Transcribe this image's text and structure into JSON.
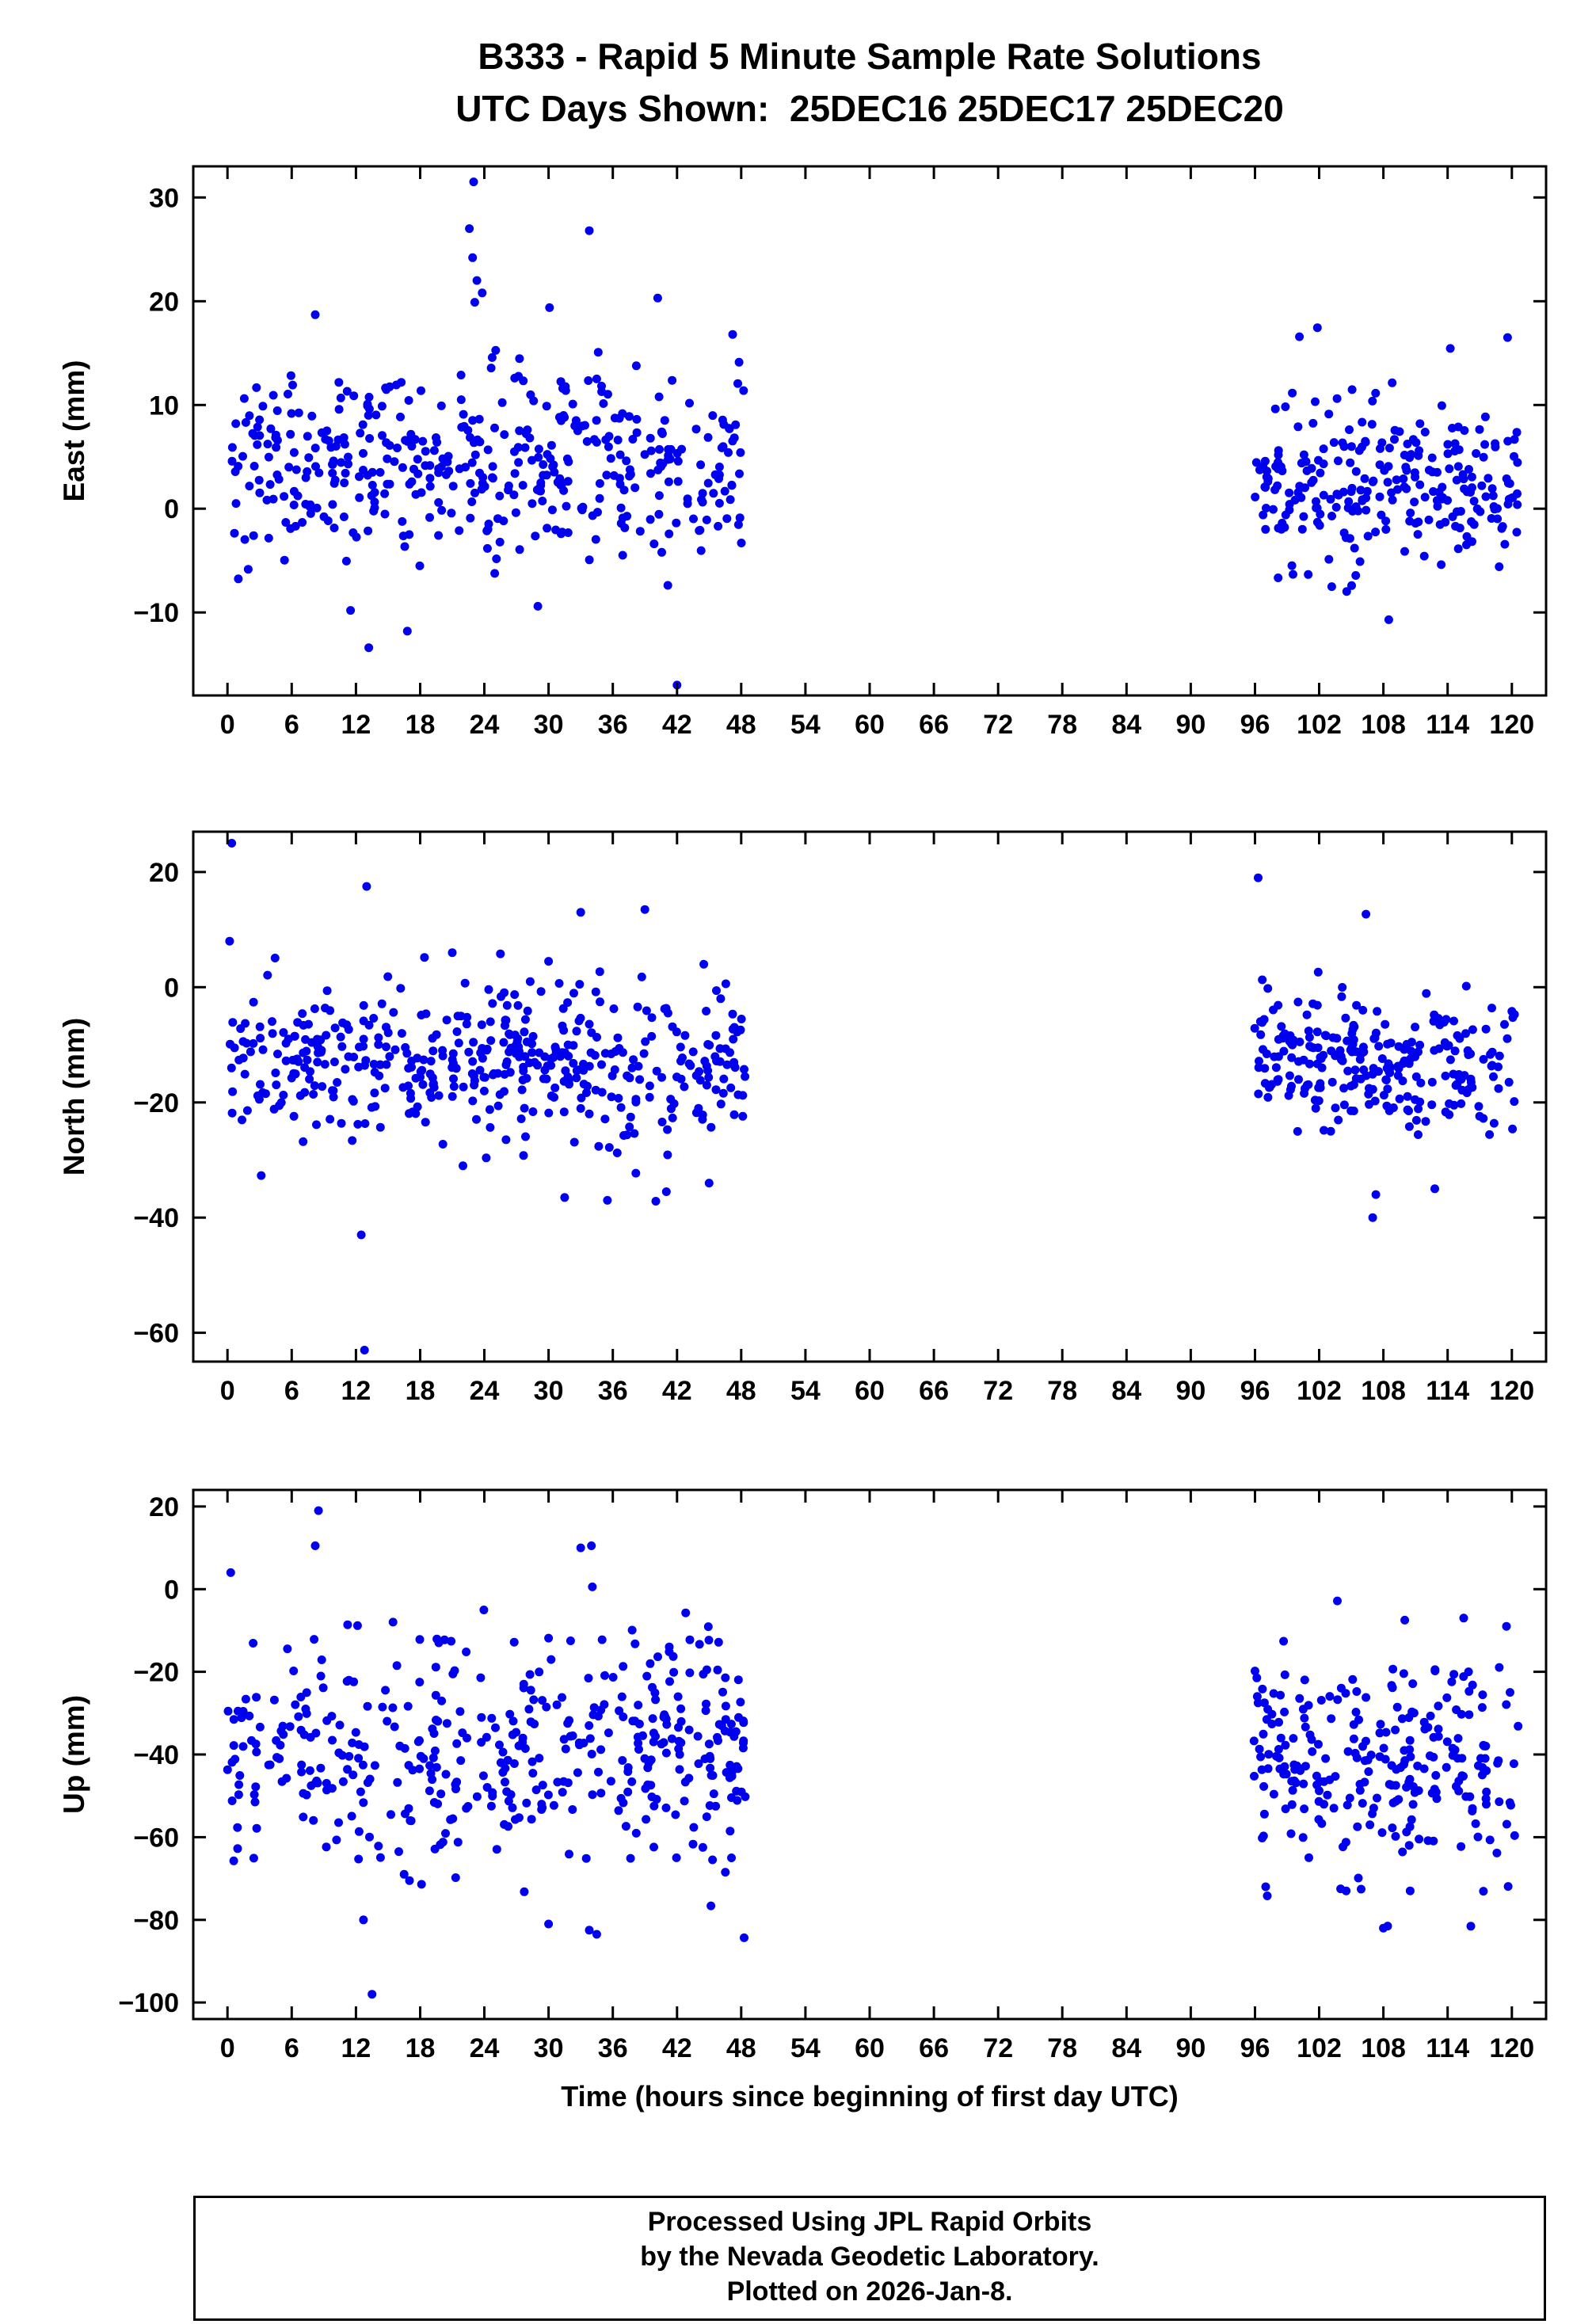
{
  "title": {
    "line1": "B333 - Rapid 5 Minute Sample Rate Solutions",
    "line2": "UTC Days Shown:  25DEC16 25DEC17 25DEC20"
  },
  "xlabel": "Time (hours since beginning of first day UTC)",
  "footer": {
    "line1": "Processed Using JPL Rapid Orbits",
    "line2": "by the Nevada Geodetic Laboratory.",
    "line3": "Plotted on 2026-Jan-8."
  },
  "chart_data": [
    {
      "type": "scatter",
      "name": "east",
      "ylabel": "East (mm)",
      "ylim": [
        -18,
        33
      ],
      "yticks": [
        -10,
        0,
        10,
        20,
        30
      ],
      "xlim": [
        -3.2,
        123.2
      ],
      "xticks": [
        0,
        6,
        12,
        18,
        24,
        30,
        36,
        42,
        48,
        54,
        60,
        66,
        72,
        78,
        84,
        90,
        96,
        102,
        108,
        114,
        120
      ],
      "point_color": "#0000ee",
      "point_radius": 5.5,
      "seed": 101,
      "clusters": [
        {
          "x_range": [
            0,
            48.4
          ],
          "n": 440,
          "mean": 4.5,
          "sd": 4.6
        },
        {
          "x_range": [
            95.9,
            120.6
          ],
          "n": 255,
          "mean": 2.5,
          "sd": 4.4
        }
      ],
      "outliers": [
        [
          23.0,
          31.5
        ],
        [
          22.6,
          27.0
        ],
        [
          33.8,
          26.8
        ],
        [
          22.9,
          24.2
        ],
        [
          23.3,
          22.0
        ],
        [
          23.8,
          20.8
        ],
        [
          40.2,
          20.3
        ],
        [
          23.1,
          19.9
        ],
        [
          8.2,
          18.7
        ],
        [
          47.2,
          16.8
        ],
        [
          119.6,
          16.5
        ],
        [
          13.2,
          -13.4
        ],
        [
          42.0,
          -17.0
        ],
        [
          16.8,
          -11.8
        ],
        [
          108.5,
          -10.7
        ],
        [
          29.0,
          -9.4
        ],
        [
          11.5,
          -9.8
        ]
      ]
    },
    {
      "type": "scatter",
      "name": "north",
      "ylabel": "North (mm)",
      "ylim": [
        -65,
        27
      ],
      "yticks": [
        -60,
        -40,
        -20,
        0,
        20
      ],
      "xlim": [
        -3.2,
        123.2
      ],
      "xticks": [
        0,
        6,
        12,
        18,
        24,
        30,
        36,
        42,
        48,
        54,
        60,
        66,
        72,
        78,
        84,
        90,
        96,
        102,
        108,
        114,
        120
      ],
      "point_color": "#0000ee",
      "point_radius": 5.5,
      "seed": 202,
      "clusters": [
        {
          "x_range": [
            0,
            48.4
          ],
          "n": 450,
          "mean": -13.0,
          "sd": 6.5
        },
        {
          "x_range": [
            95.9,
            120.6
          ],
          "n": 260,
          "mean": -12.5,
          "sd": 6.0
        }
      ],
      "outliers": [
        [
          0.4,
          25.0
        ],
        [
          0.2,
          8.0
        ],
        [
          13.0,
          17.5
        ],
        [
          12.5,
          -43.0
        ],
        [
          12.8,
          -63.0
        ],
        [
          33.0,
          13.0
        ],
        [
          39.0,
          13.5
        ],
        [
          21.0,
          6.0
        ],
        [
          25.5,
          5.8
        ],
        [
          30.0,
          4.5
        ],
        [
          44.5,
          4.0
        ],
        [
          96.3,
          19.0
        ],
        [
          107.0,
          -40.0
        ],
        [
          107.3,
          -36.0
        ],
        [
          112.8,
          -35.0
        ],
        [
          31.5,
          -36.5
        ],
        [
          35.5,
          -37.0
        ],
        [
          41.0,
          -35.5
        ],
        [
          45.0,
          -34.0
        ],
        [
          22.0,
          -31.0
        ]
      ]
    },
    {
      "type": "scatter",
      "name": "up",
      "ylabel": "Up (mm)",
      "ylim": [
        -104,
        24
      ],
      "yticks": [
        -100,
        -80,
        -60,
        -40,
        -20,
        0,
        20
      ],
      "xlim": [
        -3.2,
        123.2
      ],
      "xticks": [
        0,
        6,
        12,
        18,
        24,
        30,
        36,
        42,
        48,
        54,
        60,
        66,
        72,
        78,
        84,
        90,
        96,
        102,
        108,
        114,
        120
      ],
      "point_color": "#0000ee",
      "point_radius": 5.5,
      "seed": 303,
      "clusters": [
        {
          "x_range": [
            0,
            48.4
          ],
          "n": 430,
          "mean": -38.0,
          "sd": 14.0
        },
        {
          "x_range": [
            95.9,
            120.6
          ],
          "n": 250,
          "mean": -42.0,
          "sd": 13.0
        }
      ],
      "outliers": [
        [
          8.5,
          19.0
        ],
        [
          8.2,
          10.5
        ],
        [
          0.3,
          4.0
        ],
        [
          13.5,
          -98.0
        ],
        [
          33.0,
          10.0
        ],
        [
          34.0,
          10.5
        ],
        [
          12.7,
          -80.0
        ],
        [
          34.5,
          -83.5
        ],
        [
          33.8,
          -82.5
        ],
        [
          30.0,
          -81.0
        ],
        [
          16.5,
          -69.0
        ],
        [
          17.0,
          -70.5
        ],
        [
          108.0,
          -82.0
        ],
        [
          108.4,
          -81.5
        ],
        [
          110.5,
          -73.0
        ],
        [
          97.0,
          -72.0
        ],
        [
          104.0,
          -72.5
        ],
        [
          115.5,
          -7.0
        ],
        [
          110.0,
          -7.5
        ],
        [
          119.5,
          -9.0
        ]
      ]
    }
  ]
}
